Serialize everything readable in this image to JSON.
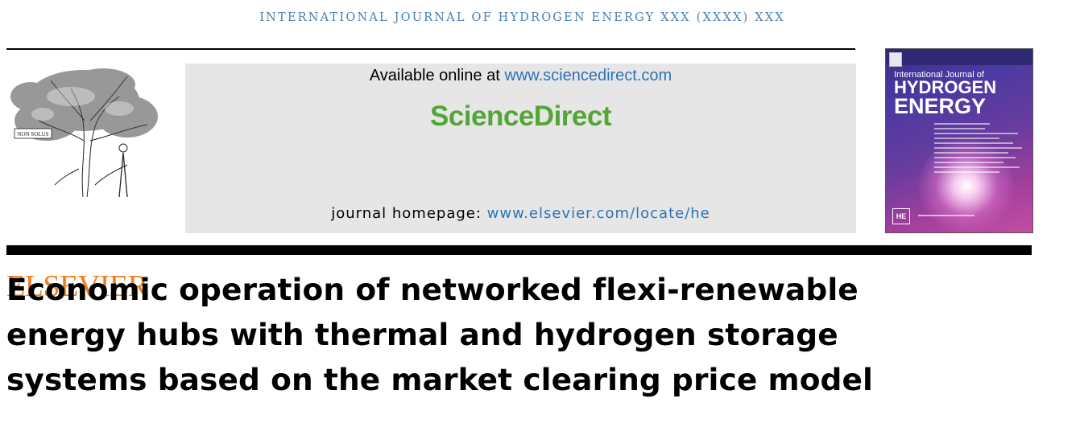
{
  "running_head": "INTERNATIONAL JOURNAL OF HYDROGEN ENERGY XXX (XXXX) XXX",
  "publisher": {
    "name": "ELSEVIER",
    "motto": "NON SOLUS",
    "color": "#f07f1a"
  },
  "availability": {
    "prefix": "Available online at ",
    "link": "www.sciencedirect.com"
  },
  "brand": {
    "name": "ScienceDirect",
    "color": "#53a635"
  },
  "homepage": {
    "prefix": "journal homepage: ",
    "link": "www.elsevier.com/locate/he"
  },
  "cover": {
    "line1": "International Journal of",
    "line2": "HYDROGEN",
    "line3": "ENERGY",
    "badge": "HE"
  },
  "article": {
    "title_lines": [
      "Economic operation of networked flexi-renewable",
      "energy hubs with thermal and hydrogen storage",
      "systems based on the market clearing price model"
    ]
  },
  "colors": {
    "link": "#2b74b8",
    "running_head": "#4a7fb3"
  }
}
